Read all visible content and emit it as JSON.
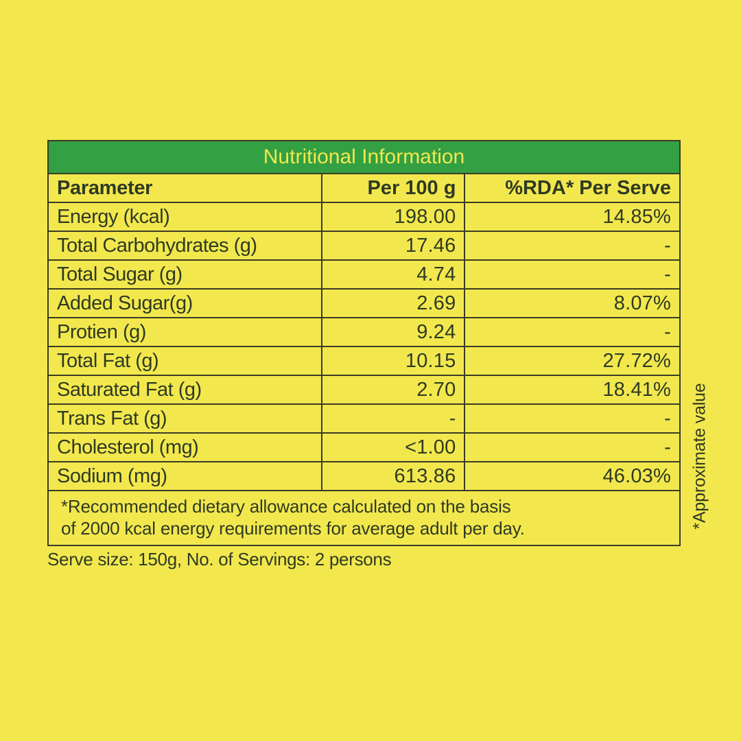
{
  "table": {
    "title": "Nutritional Information",
    "headers": [
      "Parameter",
      "Per 100 g",
      "%RDA* Per Serve"
    ],
    "rows": [
      {
        "parameter": "Energy (kcal)",
        "per100g": "198.00",
        "rda": "14.85%"
      },
      {
        "parameter": "Total Carbohydrates (g)",
        "per100g": "17.46",
        "rda": "-"
      },
      {
        "parameter": "Total Sugar (g)",
        "per100g": "4.74",
        "rda": "-"
      },
      {
        "parameter": "Added Sugar(g)",
        "per100g": "2.69",
        "rda": "8.07%"
      },
      {
        "parameter": "Protien (g)",
        "per100g": "9.24",
        "rda": "-"
      },
      {
        "parameter": "Total Fat (g)",
        "per100g": "10.15",
        "rda": "27.72%"
      },
      {
        "parameter": "Saturated Fat (g)",
        "per100g": "2.70",
        "rda": "18.41%"
      },
      {
        "parameter": "Trans Fat (g)",
        "per100g": "-",
        "rda": "-"
      },
      {
        "parameter": "Cholesterol (mg)",
        "per100g": "<1.00",
        "rda": "-"
      },
      {
        "parameter": "Sodium (mg)",
        "per100g": "613.86",
        "rda": "46.03%"
      }
    ],
    "footnote_line1": "*Recommended dietary allowance calculated on the basis",
    "footnote_line2": "of 2000 kcal energy requirements for average adult per day."
  },
  "serve_info": "Serve size: 150g, No. of Servings: 2 persons",
  "side_note": "*Approximate value",
  "colors": {
    "background": "#f2e84e",
    "header_green": "#33a043",
    "text": "#2f3a22",
    "border": "#3b3b24"
  }
}
